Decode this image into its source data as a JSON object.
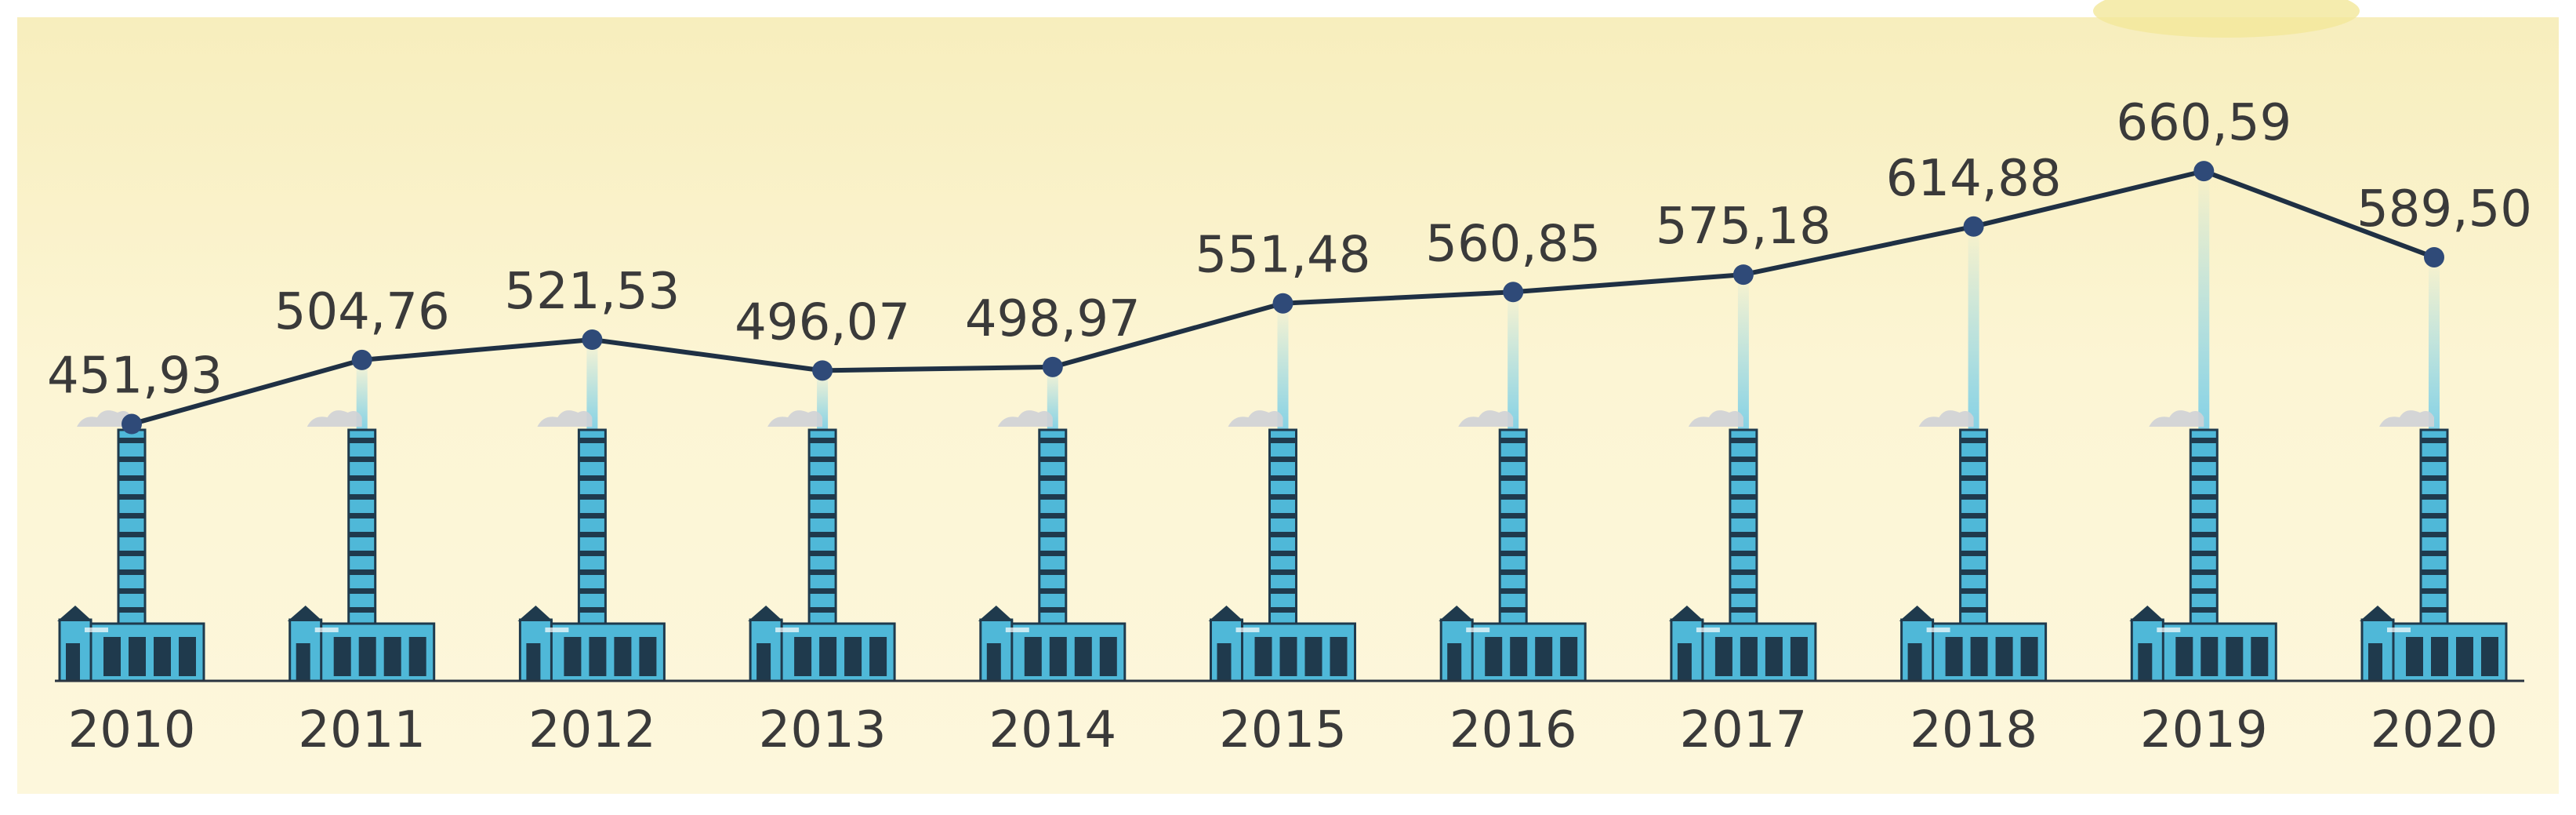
{
  "chart_data": {
    "type": "line",
    "categories": [
      "2010",
      "2011",
      "2012",
      "2013",
      "2014",
      "2015",
      "2016",
      "2017",
      "2018",
      "2019",
      "2020"
    ],
    "values": [
      451.93,
      504.76,
      521.53,
      496.07,
      498.97,
      551.48,
      560.85,
      575.18,
      614.88,
      660.59,
      589.5
    ],
    "value_labels": [
      "451,93",
      "504,76",
      "521,53",
      "496,07",
      "498,97",
      "551,48",
      "560,85",
      "575,18",
      "614,88",
      "660,59",
      "589,50"
    ],
    "title": "",
    "xlabel": "",
    "ylabel": "",
    "ylim": [
      240,
      750
    ],
    "grid": false,
    "legend": "none",
    "line_color": "#1f3044",
    "marker_color": "#2f4a78",
    "label_color": "#3a3a3a",
    "icon": "factory-chimney-icon"
  },
  "colors": {
    "background": "#fdf6d8",
    "background_top": "#f8efc0",
    "frame": "#ffffff",
    "factory": "#4fb8d8",
    "factory_dark": "#1f3a4d",
    "smoke": "#cfd2d6",
    "beam": "#7fd0e6",
    "baseline": "#2a3440"
  }
}
